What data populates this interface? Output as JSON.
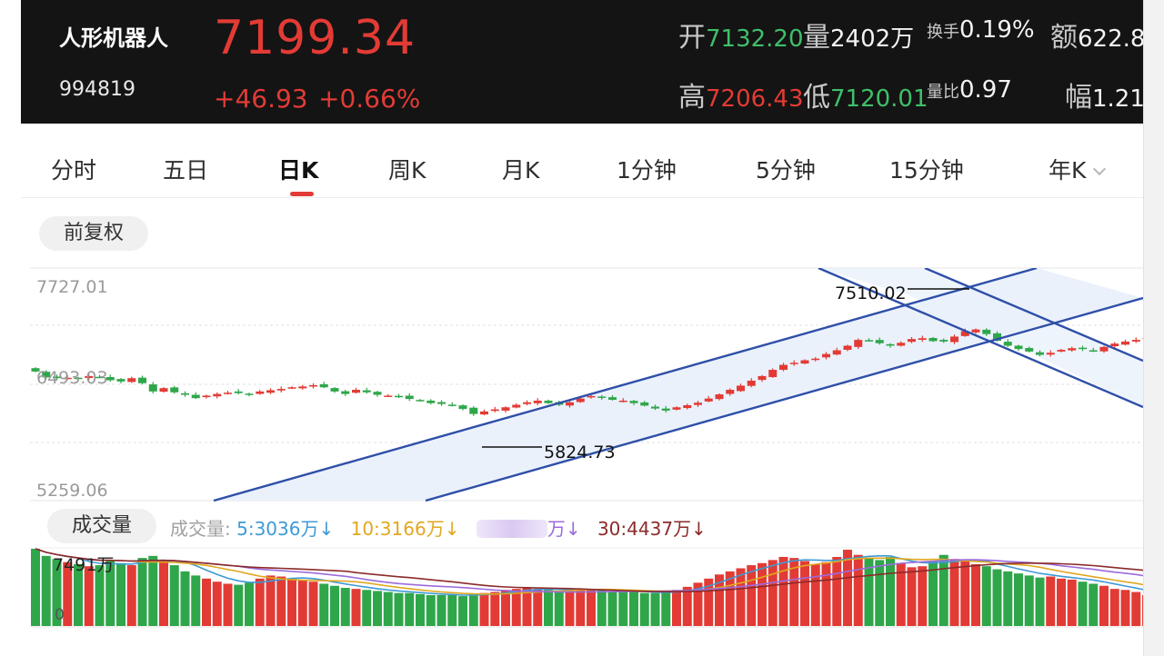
{
  "header": {
    "name": "人形机器人",
    "code": "994819",
    "price": "7199.34",
    "change": "+46.93",
    "change_pct": "+0.66%",
    "stats": {
      "open_label": "开",
      "open": "7132.20",
      "volume_label": "量",
      "volume": "2402万",
      "turnover_label": "换手",
      "turnover": "0.19%",
      "amount_label": "额",
      "amount": "622.8",
      "high_label": "高",
      "high": "7206.43",
      "low_label": "低",
      "low": "7120.01",
      "vol_ratio_label": "量比",
      "vol_ratio": "0.97",
      "amplitude_label": "幅",
      "amplitude": "1.21"
    }
  },
  "tabs": [
    {
      "label": "分时"
    },
    {
      "label": "五日"
    },
    {
      "label": "日K"
    },
    {
      "label": "周K"
    },
    {
      "label": "月K"
    },
    {
      "label": "1分钟"
    },
    {
      "label": "5分钟"
    },
    {
      "label": "15分钟"
    },
    {
      "label": "年K"
    }
  ],
  "active_tab": "日K",
  "adjust_label": "前复权",
  "volume_panel": {
    "label": "成交量",
    "legend_prefix": "成交量:",
    "ma5": "5:3036万",
    "ma10": "10:3166万",
    "ma20_suffix": "万",
    "ma30": "30:4437万",
    "max_label": "7491万",
    "zero_label": "0"
  },
  "colors": {
    "up": "#e23b35",
    "down": "#2fa64a",
    "channel": "#2f4fa8",
    "ma5": "#3e9ad6",
    "ma10": "#e0a820",
    "ma20": "#9b6bdc",
    "ma30": "#8b2a2a"
  },
  "chart_data": {
    "type": "candlestick",
    "y_ticks": [
      "7727.01",
      "6493.03",
      "5259.06"
    ],
    "ylim": [
      5259.06,
      7727.01
    ],
    "annotations": [
      {
        "label": "7510.02",
        "value": 7510.02
      },
      {
        "label": "5824.73",
        "value": 5824.73
      }
    ],
    "closes": [
      6680,
      6610,
      6600,
      6605,
      6590,
      6625,
      6610,
      6575,
      6560,
      6600,
      6540,
      6440,
      6480,
      6430,
      6400,
      6360,
      6390,
      6410,
      6425,
      6420,
      6405,
      6440,
      6455,
      6470,
      6490,
      6500,
      6515,
      6490,
      6440,
      6410,
      6460,
      6430,
      6400,
      6390,
      6380,
      6350,
      6330,
      6300,
      6290,
      6270,
      6230,
      6170,
      6200,
      6225,
      6250,
      6280,
      6310,
      6330,
      6300,
      6280,
      6310,
      6355,
      6385,
      6365,
      6340,
      6330,
      6300,
      6270,
      6235,
      6210,
      6250,
      6275,
      6305,
      6355,
      6405,
      6460,
      6510,
      6570,
      6625,
      6700,
      6760,
      6785,
      6815,
      6835,
      6890,
      6935,
      6990,
      7060,
      7050,
      7020,
      6990,
      7025,
      7070,
      7080,
      7045,
      7040,
      7100,
      7165,
      7185,
      7130,
      7050,
      6990,
      6950,
      6920,
      6880,
      6905,
      6940,
      6960,
      6950,
      6925,
      6975,
      7015,
      7040,
      7060,
      7085,
      7100
    ],
    "volume_max": 7491,
    "volumes": [
      7491,
      6800,
      6500,
      6200,
      6000,
      5800,
      5900,
      6300,
      6100,
      5900,
      6600,
      6800,
      6400,
      5900,
      5300,
      4900,
      4600,
      4300,
      4100,
      4000,
      4200,
      4600,
      4900,
      4800,
      4600,
      4400,
      4300,
      4100,
      3900,
      3700,
      3600,
      3500,
      3400,
      3300,
      3200,
      3200,
      3100,
      3000,
      3000,
      3000,
      2900,
      3100,
      3200,
      3300,
      3500,
      3600,
      3700,
      3600,
      3500,
      3400,
      3500,
      3600,
      3600,
      3500,
      3400,
      3300,
      3300,
      3200,
      3200,
      3300,
      3500,
      3800,
      4200,
      4600,
      5000,
      5300,
      5600,
      5900,
      6100,
      6400,
      6700,
      6600,
      6300,
      6000,
      6200,
      6700,
      7400,
      6900,
      6600,
      6400,
      6700,
      6100,
      5700,
      5800,
      6300,
      6900,
      6500,
      6300,
      6000,
      5800,
      5500,
      5300,
      5100,
      4900,
      4700,
      4800,
      4600,
      4500,
      4300,
      4100,
      3900,
      3600,
      3500,
      3300,
      3000,
      2700
    ]
  }
}
